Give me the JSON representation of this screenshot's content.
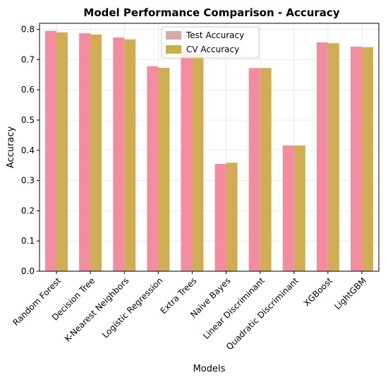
{
  "chart_data": {
    "type": "bar",
    "title": "Model Performance Comparison - Accuracy",
    "xlabel": "Models",
    "ylabel": "Accuracy",
    "ylim": [
      0,
      0.82
    ],
    "yticks": [
      "0.0",
      "0.1",
      "0.2",
      "0.3",
      "0.4",
      "0.5",
      "0.6",
      "0.7",
      "0.8"
    ],
    "grid": true,
    "legend_position": "top-center",
    "categories": [
      "Random Forest",
      "Decision Tree",
      "K-Nearest Neighbors",
      "Logistic Regression",
      "Extra Trees",
      "Naive Bayes",
      "Linear Discriminant",
      "Quadratic Discriminant",
      "XGBoost",
      "LightGBM"
    ],
    "series": [
      {
        "name": "Test Accuracy",
        "color": "#f48ca0",
        "legend_color": "#d7aaa6",
        "values": [
          0.795,
          0.787,
          0.773,
          0.678,
          0.727,
          0.355,
          0.672,
          0.416,
          0.757,
          0.743
        ]
      },
      {
        "name": "CV Accuracy",
        "color": "#d0ac55",
        "legend_color": "#c6b14b",
        "values": [
          0.79,
          0.783,
          0.767,
          0.673,
          0.723,
          0.359,
          0.672,
          0.416,
          0.754,
          0.741
        ]
      }
    ]
  }
}
